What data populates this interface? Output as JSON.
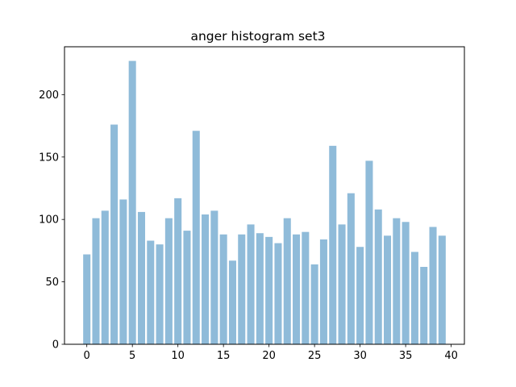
{
  "chart_data": {
    "type": "bar",
    "title": "anger histogram set3",
    "xlabel": "",
    "ylabel": "",
    "x": [
      0,
      1,
      2,
      3,
      4,
      5,
      6,
      7,
      8,
      9,
      10,
      11,
      12,
      13,
      14,
      15,
      16,
      17,
      18,
      19,
      20,
      21,
      22,
      23,
      24,
      25,
      26,
      27,
      28,
      29,
      30,
      31,
      32,
      33,
      34,
      35,
      36,
      37,
      38,
      39
    ],
    "values": [
      72,
      101,
      107,
      176,
      116,
      227,
      106,
      83,
      80,
      101,
      117,
      91,
      171,
      104,
      107,
      88,
      67,
      88,
      96,
      89,
      86,
      81,
      101,
      88,
      90,
      64,
      84,
      159,
      96,
      121,
      78,
      147,
      108,
      87,
      101,
      98,
      74,
      62,
      94,
      87
    ],
    "xlim": [
      -2.45,
      41.45
    ],
    "ylim": [
      0,
      238.35
    ],
    "xticks": [
      0,
      5,
      10,
      15,
      20,
      25,
      30,
      35,
      40
    ],
    "yticks": [
      0,
      50,
      100,
      150,
      200
    ],
    "bar_width": 0.8,
    "bar_color": "#8fbbd9",
    "grid": false,
    "legend": "none"
  }
}
